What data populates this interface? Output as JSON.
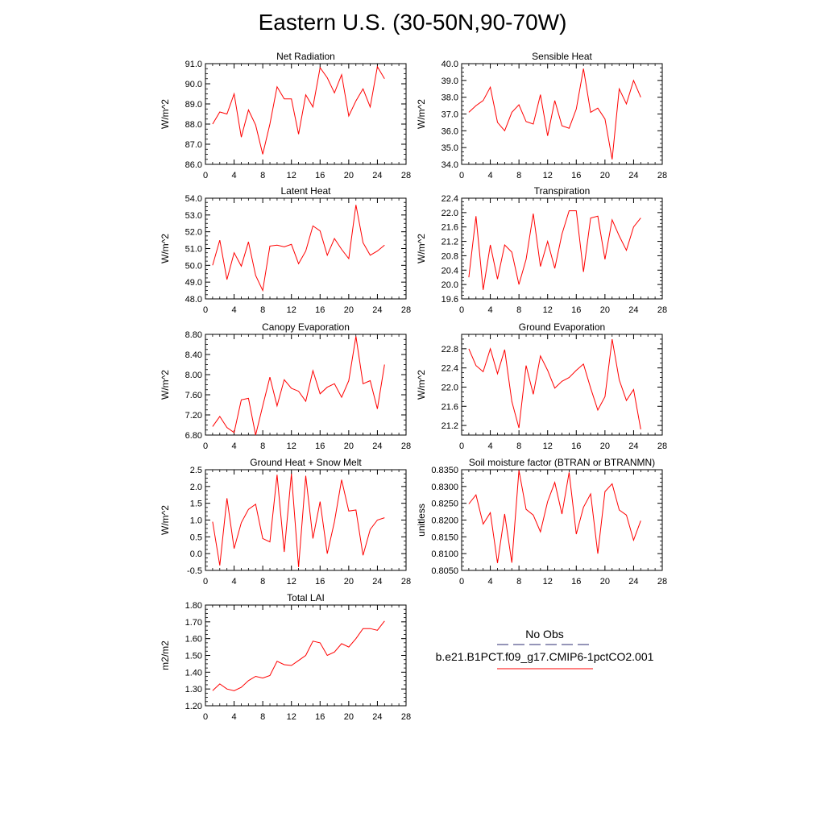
{
  "title": "Eastern U.S. (30-50N,90-70W)",
  "legend": {
    "obs_label": "No Obs",
    "case_label": "b.e21.B1PCT.f09_g17.CMIP6-1pctCO2.001",
    "obs_color": "#2b2b70",
    "case_color": "#ff0000"
  },
  "chart_data": [
    {
      "type": "line",
      "title": "Net Radiation",
      "ylabel": "W/m^2",
      "xlim": [
        0,
        28
      ],
      "ylim": [
        86,
        91
      ],
      "xticks": [
        0,
        4,
        8,
        12,
        16,
        20,
        24,
        28
      ],
      "yticks": [
        "86.0",
        "87.0",
        "88.0",
        "89.0",
        "90.0",
        "91.0"
      ],
      "x": [
        1,
        2,
        3,
        4,
        5,
        6,
        7,
        8,
        9,
        10,
        11,
        12,
        13,
        14,
        15,
        16,
        17,
        18,
        19,
        20,
        21,
        22,
        23,
        24,
        25
      ],
      "series": [
        {
          "color": "#ff0000",
          "values": [
            88.0,
            88.6,
            88.5,
            89.5,
            87.35,
            88.7,
            87.95,
            86.5,
            88.0,
            89.85,
            89.25,
            89.25,
            87.5,
            89.45,
            88.85,
            90.8,
            90.3,
            89.55,
            90.45,
            88.4,
            89.15,
            89.75,
            88.85,
            90.85,
            90.25
          ]
        }
      ]
    },
    {
      "type": "line",
      "title": "Sensible Heat",
      "ylabel": "W/m^2",
      "xlim": [
        0,
        28
      ],
      "ylim": [
        34,
        40
      ],
      "xticks": [
        0,
        4,
        8,
        12,
        16,
        20,
        24,
        28
      ],
      "yticks": [
        "34.0",
        "35.0",
        "36.0",
        "37.0",
        "38.0",
        "39.0",
        "40.0"
      ],
      "x": [
        1,
        2,
        3,
        4,
        5,
        6,
        7,
        8,
        9,
        10,
        11,
        12,
        13,
        14,
        15,
        16,
        17,
        18,
        19,
        20,
        21,
        22,
        23,
        24,
        25
      ],
      "series": [
        {
          "color": "#ff0000",
          "values": [
            37.1,
            37.5,
            37.8,
            38.6,
            36.5,
            36.0,
            37.1,
            37.55,
            36.55,
            36.4,
            38.15,
            35.7,
            37.8,
            36.3,
            36.15,
            37.3,
            39.7,
            37.1,
            37.35,
            36.7,
            34.3,
            38.5,
            37.6,
            39.0,
            38.0
          ]
        }
      ]
    },
    {
      "type": "line",
      "title": "Latent Heat",
      "ylabel": "W/m^2",
      "xlim": [
        0,
        28
      ],
      "ylim": [
        48,
        54
      ],
      "xticks": [
        0,
        4,
        8,
        12,
        16,
        20,
        24,
        28
      ],
      "yticks": [
        "48.0",
        "49.0",
        "50.0",
        "51.0",
        "52.0",
        "53.0",
        "54.0"
      ],
      "x": [
        1,
        2,
        3,
        4,
        5,
        6,
        7,
        8,
        9,
        10,
        11,
        12,
        13,
        14,
        15,
        16,
        17,
        18,
        19,
        20,
        21,
        22,
        23,
        24,
        25
      ],
      "series": [
        {
          "color": "#ff0000",
          "values": [
            50.0,
            51.5,
            49.15,
            50.75,
            49.95,
            51.4,
            49.4,
            48.5,
            51.15,
            51.2,
            51.1,
            51.25,
            50.1,
            50.85,
            52.35,
            52.05,
            50.6,
            51.6,
            50.95,
            50.4,
            53.6,
            51.35,
            50.6,
            50.85,
            51.2
          ]
        }
      ]
    },
    {
      "type": "line",
      "title": "Transpiration",
      "ylabel": "W/m^2",
      "xlim": [
        0,
        28
      ],
      "ylim": [
        19.6,
        22.4
      ],
      "xticks": [
        0,
        4,
        8,
        12,
        16,
        20,
        24,
        28
      ],
      "yticks": [
        "19.6",
        "20.0",
        "20.4",
        "20.8",
        "21.2",
        "21.6",
        "22.0",
        "22.4"
      ],
      "x": [
        1,
        2,
        3,
        4,
        5,
        6,
        7,
        8,
        9,
        10,
        11,
        12,
        13,
        14,
        15,
        16,
        17,
        18,
        19,
        20,
        21,
        22,
        23,
        24,
        25
      ],
      "series": [
        {
          "color": "#ff0000",
          "values": [
            20.2,
            21.9,
            19.85,
            21.1,
            20.15,
            21.1,
            20.9,
            20.0,
            20.7,
            21.97,
            20.5,
            21.2,
            20.45,
            21.4,
            22.05,
            22.05,
            20.35,
            21.85,
            21.9,
            20.7,
            21.8,
            21.35,
            20.95,
            21.6,
            21.85
          ]
        }
      ]
    },
    {
      "type": "line",
      "title": "Canopy Evaporation",
      "ylabel": "W/m^2",
      "xlim": [
        0,
        28
      ],
      "ylim": [
        6.8,
        8.8
      ],
      "xticks": [
        0,
        4,
        8,
        12,
        16,
        20,
        24,
        28
      ],
      "yticks": [
        "6.80",
        "7.20",
        "7.60",
        "8.00",
        "8.40",
        "8.80"
      ],
      "x": [
        1,
        2,
        3,
        4,
        5,
        6,
        7,
        8,
        9,
        10,
        11,
        12,
        13,
        14,
        15,
        16,
        17,
        18,
        19,
        20,
        21,
        22,
        23,
        24,
        25
      ],
      "series": [
        {
          "color": "#ff0000",
          "values": [
            6.97,
            7.17,
            6.95,
            6.85,
            7.5,
            7.53,
            6.8,
            7.38,
            7.95,
            7.38,
            7.9,
            7.73,
            7.67,
            7.47,
            8.08,
            7.62,
            7.75,
            7.82,
            7.55,
            7.88,
            8.76,
            7.82,
            7.88,
            7.32,
            8.2
          ]
        }
      ]
    },
    {
      "type": "line",
      "title": "Ground Evaporation",
      "ylabel": "W/m^2",
      "xlim": [
        0,
        28
      ],
      "ylim": [
        21.0,
        23.1
      ],
      "xticks": [
        0,
        4,
        8,
        12,
        16,
        20,
        24,
        28
      ],
      "yticks": [
        "21.2",
        "21.6",
        "22.0",
        "22.4",
        "22.8"
      ],
      "x": [
        1,
        2,
        3,
        4,
        5,
        6,
        7,
        8,
        9,
        10,
        11,
        12,
        13,
        14,
        15,
        16,
        17,
        18,
        19,
        20,
        21,
        22,
        23,
        24,
        25
      ],
      "series": [
        {
          "color": "#ff0000",
          "values": [
            22.8,
            22.45,
            22.32,
            22.8,
            22.28,
            22.78,
            21.7,
            21.15,
            22.45,
            21.85,
            22.65,
            22.35,
            21.98,
            22.12,
            22.2,
            22.35,
            22.48,
            21.98,
            21.52,
            21.8,
            23.0,
            22.15,
            21.72,
            21.95,
            21.12
          ]
        }
      ]
    },
    {
      "type": "line",
      "title": "Ground Heat + Snow Melt",
      "ylabel": "W/m^2",
      "xlim": [
        0,
        28
      ],
      "ylim": [
        -0.5,
        2.5
      ],
      "xticks": [
        0,
        4,
        8,
        12,
        16,
        20,
        24,
        28
      ],
      "yticks": [
        "-0.5",
        "0.0",
        "0.5",
        "1.0",
        "1.5",
        "2.0",
        "2.5"
      ],
      "x": [
        1,
        2,
        3,
        4,
        5,
        6,
        7,
        8,
        9,
        10,
        11,
        12,
        13,
        14,
        15,
        16,
        17,
        18,
        19,
        20,
        21,
        22,
        23,
        24,
        25
      ],
      "series": [
        {
          "color": "#ff0000",
          "values": [
            0.95,
            -0.35,
            1.65,
            0.15,
            0.92,
            1.32,
            1.47,
            0.45,
            0.35,
            2.35,
            0.05,
            2.38,
            -0.4,
            2.32,
            0.45,
            1.55,
            0.0,
            0.95,
            2.2,
            1.27,
            1.3,
            -0.05,
            0.72,
            1.0,
            1.07
          ]
        }
      ]
    },
    {
      "type": "line",
      "title": "Soil moisture factor (BTRAN or BTRANMN)",
      "ylabel": "unitless",
      "xlim": [
        0,
        28
      ],
      "ylim": [
        0.805,
        0.835
      ],
      "xticks": [
        0,
        4,
        8,
        12,
        16,
        20,
        24,
        28
      ],
      "yticks": [
        "0.8050",
        "0.8100",
        "0.8150",
        "0.8200",
        "0.8250",
        "0.8300",
        "0.8350"
      ],
      "x": [
        1,
        2,
        3,
        4,
        5,
        6,
        7,
        8,
        9,
        10,
        11,
        12,
        13,
        14,
        15,
        16,
        17,
        18,
        19,
        20,
        21,
        22,
        23,
        24,
        25
      ],
      "series": [
        {
          "color": "#ff0000",
          "values": [
            0.8248,
            0.8275,
            0.8188,
            0.8222,
            0.8072,
            0.8218,
            0.8073,
            0.8348,
            0.8232,
            0.8215,
            0.8165,
            0.8255,
            0.8312,
            0.8218,
            0.8342,
            0.8158,
            0.8238,
            0.8278,
            0.81,
            0.8285,
            0.8308,
            0.823,
            0.8215,
            0.814,
            0.8198
          ]
        }
      ]
    },
    {
      "type": "line",
      "title": "Total LAI",
      "ylabel": "m2/m2",
      "xlim": [
        0,
        28
      ],
      "ylim": [
        1.2,
        1.8
      ],
      "xticks": [
        0,
        4,
        8,
        12,
        16,
        20,
        24,
        28
      ],
      "yticks": [
        "1.20",
        "1.30",
        "1.40",
        "1.50",
        "1.60",
        "1.70",
        "1.80"
      ],
      "x": [
        1,
        2,
        3,
        4,
        5,
        6,
        7,
        8,
        9,
        10,
        11,
        12,
        13,
        14,
        15,
        16,
        17,
        18,
        19,
        20,
        21,
        22,
        23,
        24,
        25
      ],
      "series": [
        {
          "color": "#ff0000",
          "values": [
            1.29,
            1.33,
            1.3,
            1.29,
            1.31,
            1.35,
            1.375,
            1.365,
            1.38,
            1.465,
            1.445,
            1.44,
            1.47,
            1.5,
            1.585,
            1.575,
            1.5,
            1.52,
            1.57,
            1.55,
            1.6,
            1.66,
            1.66,
            1.65,
            1.705
          ]
        }
      ]
    }
  ]
}
